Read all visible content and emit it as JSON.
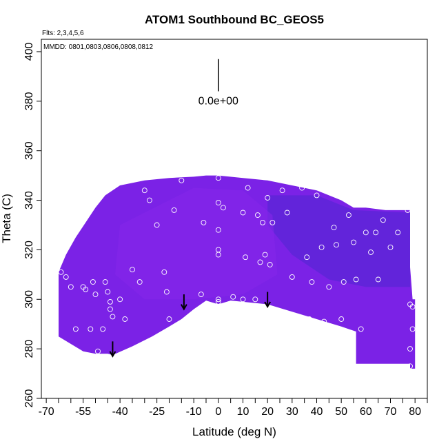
{
  "chart_data": {
    "type": "heatmap",
    "title": "ATOM1 Southbound BC_GEOS5",
    "annotations": {
      "flights": "Flts: 2,3,4,5,6",
      "dates": "MMDD: 0801,0803,0806,0808,0812"
    },
    "xlabel": "Latitude (deg N)",
    "ylabel": "Theta (C)",
    "xlim": [
      -72,
      85
    ],
    "ylim": [
      260,
      405
    ],
    "x_ticks": [
      -70,
      -65,
      -60,
      -55,
      -50,
      -45,
      -40,
      -35,
      -30,
      -25,
      -20,
      -15,
      -10,
      -5,
      0,
      5,
      10,
      15,
      20,
      25,
      30,
      35,
      40,
      45,
      50,
      55,
      60,
      65,
      70,
      75,
      80,
      85
    ],
    "x_tick_labels": [
      {
        "value": -70,
        "label": "-70"
      },
      {
        "value": -55,
        "label": "-55"
      },
      {
        "value": -40,
        "label": "-40"
      },
      {
        "value": -25,
        "label": "-25"
      },
      {
        "value": -10,
        "label": "-10"
      },
      {
        "value": 0,
        "label": "0"
      },
      {
        "value": 10,
        "label": "10"
      },
      {
        "value": 20,
        "label": "20"
      },
      {
        "value": 30,
        "label": "30"
      },
      {
        "value": 40,
        "label": "40"
      },
      {
        "value": 50,
        "label": "50"
      },
      {
        "value": 60,
        "label": "60"
      },
      {
        "value": 70,
        "label": "70"
      },
      {
        "value": 80,
        "label": "80"
      }
    ],
    "y_ticks": [
      260,
      280,
      300,
      320,
      340,
      360,
      380,
      400
    ],
    "y_tick_labels": [
      "260",
      "280",
      "300",
      "320",
      "340",
      "360",
      "380",
      "400"
    ],
    "grid": false,
    "colors": {
      "field_base": "#7b22e6",
      "field_dark": "#5a26d6",
      "field_light": "#8526ea",
      "field_surface": "#7e24e8",
      "points": "#ffffff",
      "arrows": "#000000"
    },
    "scale_arrow": {
      "x": 0,
      "y_top": 397,
      "y_bottom": 384,
      "label": "0.0e+00"
    },
    "wind_arrows": [
      {
        "x": -43,
        "y_top": 283,
        "y_bottom": 277
      },
      {
        "x": -14,
        "y_top": 302,
        "y_bottom": 296
      },
      {
        "x": 20,
        "y_top": 303,
        "y_bottom": 297
      }
    ],
    "region": {
      "lower_boundary": [
        [
          -65,
          285
        ],
        [
          -60,
          282
        ],
        [
          -55,
          279
        ],
        [
          -50,
          278
        ],
        [
          -45,
          278
        ],
        [
          -43,
          277.5
        ],
        [
          -35,
          281
        ],
        [
          -27,
          285
        ],
        [
          -20,
          289
        ],
        [
          -15,
          292
        ],
        [
          -10,
          296
        ],
        [
          -5,
          299.5
        ],
        [
          0,
          298
        ],
        [
          5,
          299.5
        ],
        [
          10,
          299
        ],
        [
          20,
          298
        ],
        [
          30,
          295
        ],
        [
          40,
          292
        ],
        [
          50,
          289
        ],
        [
          56,
          287
        ],
        [
          56,
          274
        ],
        [
          78,
          274
        ],
        [
          78,
          272
        ]
      ],
      "upper_boundary": [
        [
          -65,
          311
        ],
        [
          -62,
          318
        ],
        [
          -58,
          325
        ],
        [
          -54,
          331
        ],
        [
          -50,
          337
        ],
        [
          -46,
          342
        ],
        [
          -40,
          346
        ],
        [
          -30,
          348
        ],
        [
          -20,
          349
        ],
        [
          -10,
          349.5
        ],
        [
          -5,
          350
        ],
        [
          0,
          350
        ],
        [
          10,
          349
        ],
        [
          20,
          348
        ],
        [
          30,
          346
        ],
        [
          40,
          344
        ],
        [
          45,
          342
        ],
        [
          50,
          340
        ],
        [
          55,
          337
        ],
        [
          60,
          337
        ],
        [
          68,
          336
        ],
        [
          78,
          336
        ],
        [
          78,
          313
        ],
        [
          79,
          300
        ],
        [
          80,
          300
        ],
        [
          80,
          272
        ]
      ]
    },
    "dark_zone": [
      [
        20,
        342
      ],
      [
        40,
        342
      ],
      [
        55,
        336
      ],
      [
        78,
        335
      ],
      [
        78,
        305
      ],
      [
        60,
        305
      ],
      [
        45,
        308
      ],
      [
        30,
        318
      ],
      [
        20,
        330
      ]
    ],
    "light_zone": [
      [
        -40,
        330
      ],
      [
        -10,
        345
      ],
      [
        10,
        344
      ],
      [
        22,
        334
      ],
      [
        24,
        310
      ],
      [
        10,
        302
      ],
      [
        -10,
        300
      ],
      [
        -30,
        300
      ],
      [
        -42,
        310
      ]
    ],
    "points": [
      [
        -65,
        314
      ],
      [
        -64,
        311
      ],
      [
        -62,
        309
      ],
      [
        -60,
        305
      ],
      [
        -58,
        288
      ],
      [
        -55,
        305
      ],
      [
        -54,
        304
      ],
      [
        -52,
        288
      ],
      [
        -51,
        307
      ],
      [
        -50,
        302
      ],
      [
        -49,
        279
      ],
      [
        -47,
        288
      ],
      [
        -46,
        307
      ],
      [
        -45,
        303
      ],
      [
        -44,
        299
      ],
      [
        -44,
        296
      ],
      [
        -43,
        293
      ],
      [
        -40,
        300
      ],
      [
        -38,
        292
      ],
      [
        -35,
        312
      ],
      [
        -32,
        307
      ],
      [
        -30,
        344
      ],
      [
        -28,
        340
      ],
      [
        -25,
        330
      ],
      [
        -22,
        311
      ],
      [
        -21,
        303
      ],
      [
        -20,
        292
      ],
      [
        -18,
        336
      ],
      [
        -15,
        348
      ],
      [
        -7,
        302
      ],
      [
        -6,
        331
      ],
      [
        0,
        349
      ],
      [
        0,
        339
      ],
      [
        0,
        328
      ],
      [
        0,
        320
      ],
      [
        0,
        318
      ],
      [
        0,
        300
      ],
      [
        0,
        299
      ],
      [
        2,
        337
      ],
      [
        6,
        301
      ],
      [
        10,
        335
      ],
      [
        10,
        300
      ],
      [
        11,
        317
      ],
      [
        12,
        345
      ],
      [
        15,
        300
      ],
      [
        16,
        334
      ],
      [
        17,
        315
      ],
      [
        18,
        331
      ],
      [
        19,
        318
      ],
      [
        20,
        341
      ],
      [
        21,
        314
      ],
      [
        22,
        331
      ],
      [
        26,
        344
      ],
      [
        28,
        335
      ],
      [
        30,
        309
      ],
      [
        34,
        345
      ],
      [
        36,
        317
      ],
      [
        37,
        292
      ],
      [
        38,
        307
      ],
      [
        40,
        342
      ],
      [
        42,
        321
      ],
      [
        43,
        291
      ],
      [
        45,
        305
      ],
      [
        47,
        329
      ],
      [
        48,
        322
      ],
      [
        50,
        292
      ],
      [
        51,
        307
      ],
      [
        53,
        334
      ],
      [
        55,
        323
      ],
      [
        56,
        308
      ],
      [
        58,
        288
      ],
      [
        60,
        327
      ],
      [
        62,
        319
      ],
      [
        64,
        327
      ],
      [
        65,
        308
      ],
      [
        67,
        332
      ],
      [
        70,
        321
      ],
      [
        73,
        327
      ],
      [
        77,
        336
      ],
      [
        78,
        298
      ],
      [
        78,
        280
      ],
      [
        78,
        273
      ],
      [
        79,
        297
      ],
      [
        79,
        288
      ]
    ]
  }
}
